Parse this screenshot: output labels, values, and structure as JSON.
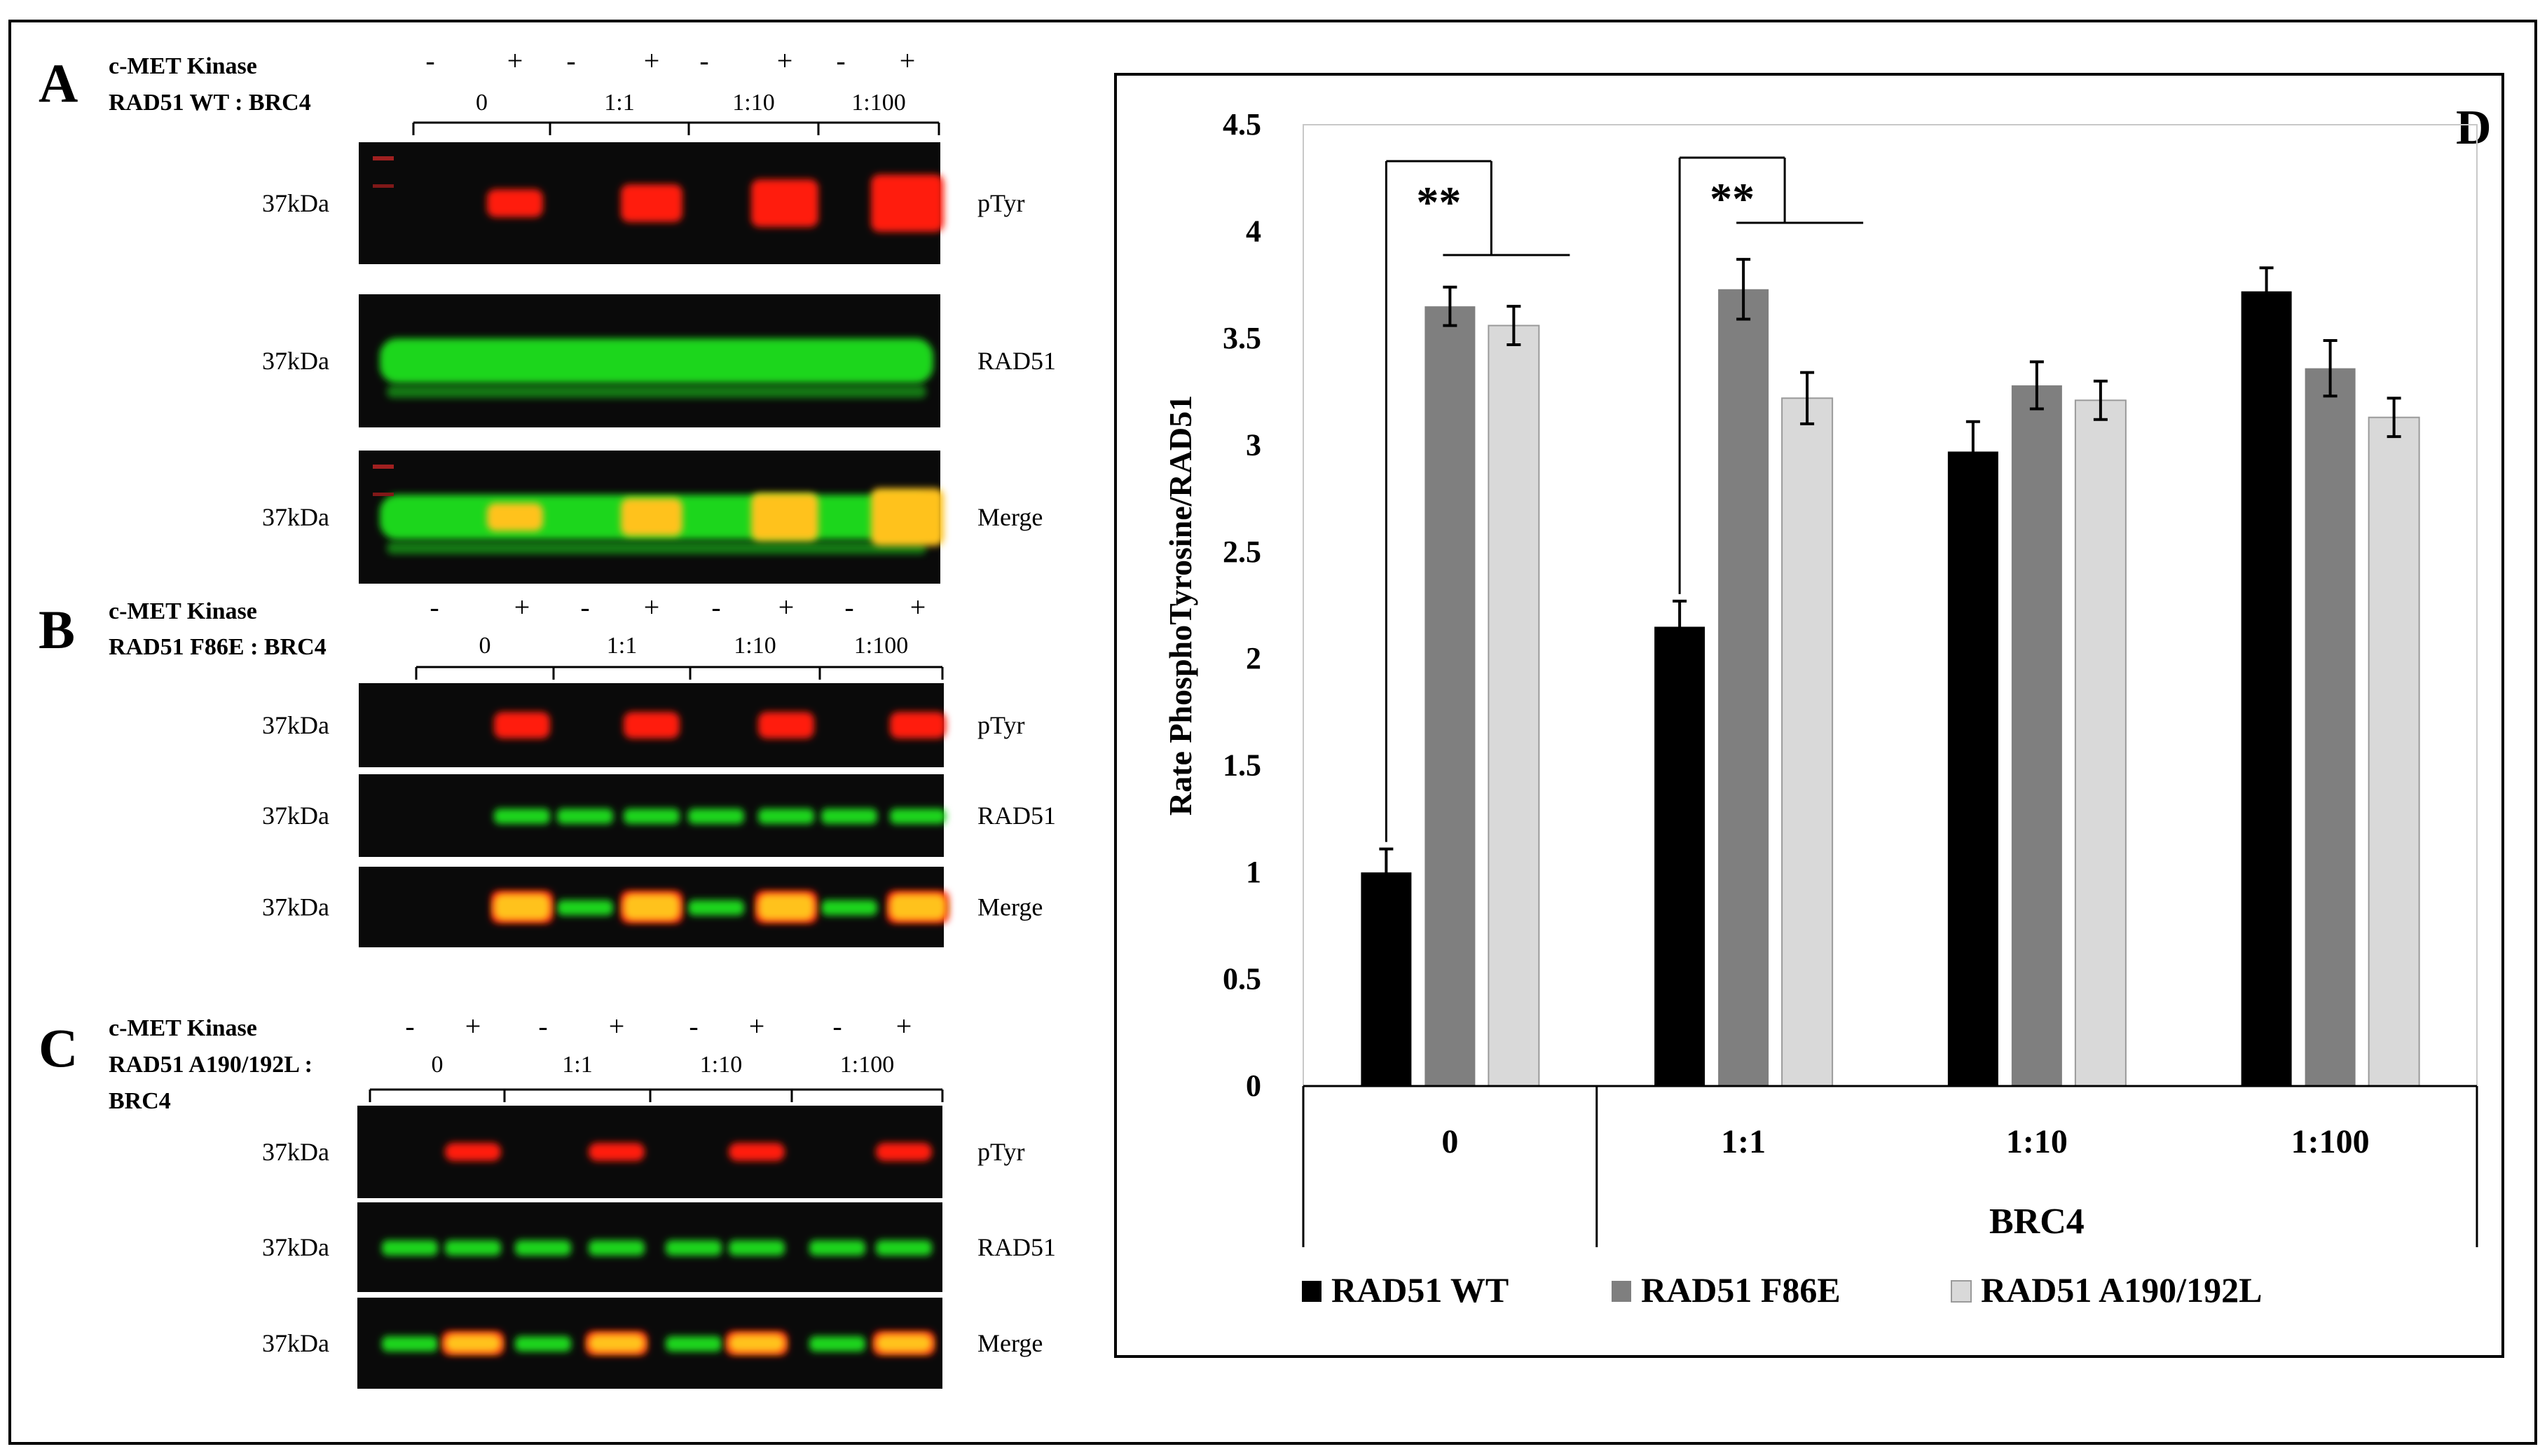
{
  "panels": {
    "A": {
      "letter": "A",
      "kinase_label": "c-MET Kinase",
      "construct_label": "RAD51 WT : BRC4",
      "signs": [
        "-",
        "+",
        "-",
        "+",
        "-",
        "+",
        "-",
        "+"
      ],
      "ratios": [
        "0",
        "1:1",
        "1:10",
        "1:100"
      ],
      "mw": [
        "37kDa",
        "37kDa",
        "37kDa"
      ],
      "channels": [
        "pTyr",
        "RAD51",
        "Merge"
      ]
    },
    "B": {
      "letter": "B",
      "kinase_label": "c-MET Kinase",
      "construct_label": "RAD51 F86E : BRC4",
      "signs": [
        "-",
        "+",
        "-",
        "+",
        "-",
        "+",
        "-",
        "+"
      ],
      "ratios": [
        "0",
        "1:1",
        "1:10",
        "1:100"
      ],
      "mw": [
        "37kDa",
        "37kDa",
        "37kDa"
      ],
      "channels": [
        "pTyr",
        "RAD51",
        "Merge"
      ]
    },
    "C": {
      "letter": "C",
      "kinase_label": "c-MET Kinase",
      "construct_label_line1": "RAD51 A190/192L :",
      "construct_label_line2": "BRC4",
      "signs": [
        "-",
        "+",
        "-",
        "+",
        "-",
        "+",
        "-",
        "+"
      ],
      "ratios": [
        "0",
        "1:1",
        "1:10",
        "1:100"
      ],
      "mw": [
        "37kDa",
        "37kDa",
        "37kDa"
      ],
      "channels": [
        "pTyr",
        "RAD51",
        "Merge"
      ]
    }
  },
  "colors": {
    "blot_bg": "#0a0a0a",
    "ptyr": "#ff1a10",
    "rad51": "#1fd61f",
    "merge": "#ffc21a",
    "bar_wt": "#000000",
    "bar_f86e": "#7f7f7f",
    "bar_a190": "#d9d9d9"
  },
  "chart_data": {
    "type": "bar",
    "panel_letter": "D",
    "categories": [
      "0",
      "1:1",
      "1:10",
      "1:100"
    ],
    "xlabel": "BRC4",
    "ylabel": "Rate PhosphoTyrosine/RAD51",
    "ylim": [
      0,
      4.5
    ],
    "yticks": [
      "0",
      "0.5",
      "1",
      "1.5",
      "2",
      "2.5",
      "3",
      "3.5",
      "4",
      "4.5"
    ],
    "series": [
      {
        "name": "RAD51 WT",
        "values": [
          1.0,
          2.15,
          2.97,
          3.72
        ],
        "errors": [
          0.11,
          0.12,
          0.14,
          0.11
        ]
      },
      {
        "name": "RAD51 F86E",
        "values": [
          3.65,
          3.73,
          3.28,
          3.36
        ],
        "errors": [
          0.09,
          0.14,
          0.11,
          0.13
        ]
      },
      {
        "name": "RAD51 A190/192L",
        "values": [
          3.56,
          3.22,
          3.21,
          3.13
        ],
        "errors": [
          0.09,
          0.12,
          0.09,
          0.09
        ]
      }
    ],
    "significance": [
      "**",
      "**"
    ],
    "legend_position": "bottom"
  }
}
